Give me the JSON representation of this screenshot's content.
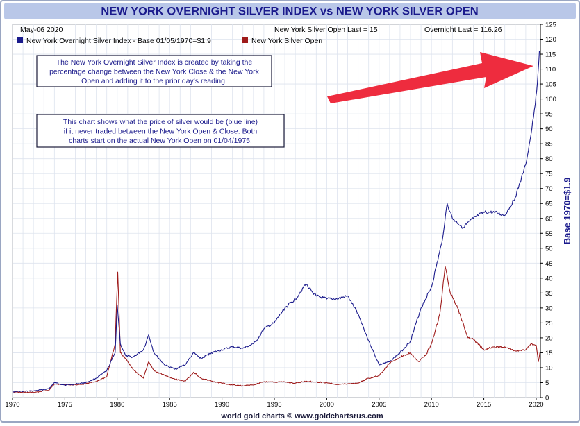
{
  "title": "NEW YORK OVERNIGHT SILVER INDEX vs NEW YORK SILVER OPEN",
  "date_label": "May-06  2020",
  "legend": [
    {
      "label": "New York Overnight Silver Index - Base 01/05/1970=$1.9",
      "color": "#1a1a8c"
    },
    {
      "label": "New York Silver Open",
      "color": "#9e1a1a"
    }
  ],
  "last_values": {
    "open_text": "New York Silver Open Last = 15",
    "overnight_text": "Overnight Last = 116.26"
  },
  "notes": [
    "The New York Overnight Silver Index is created by taking the percentage change between the New York Close & the New York Open and adding it to the prior day's reading.",
    "This chart shows what the price of silver would be (blue line) if it never traded between the New York Open & Close. Both charts start on the actual New York Open on 01/04/1975."
  ],
  "footer": "world gold charts © www.goldchartsrus.com",
  "colors": {
    "title_bg": "#b9c7e8",
    "title_text": "#1a1a8c",
    "blue_line": "#1a1a8c",
    "red_line": "#9e1a1a",
    "annotation_arrow": "#ee2c3e",
    "note_text": "#1a1a8c",
    "y2_label": "#1a1a8c"
  },
  "chart_data": {
    "type": "line",
    "title": "NEW YORK OVERNIGHT SILVER INDEX vs NEW YORK SILVER OPEN",
    "xlabel": "",
    "ylabel": "",
    "y2label": "Base 1970=$1.9",
    "xlim": [
      1970,
      2020.4
    ],
    "ylim": [
      0,
      125
    ],
    "x_ticks": [
      1970,
      1975,
      1980,
      1985,
      1990,
      1995,
      2000,
      2005,
      2010,
      2015,
      2020
    ],
    "y_ticks": [
      0,
      5,
      10,
      15,
      20,
      25,
      30,
      35,
      40,
      45,
      50,
      55,
      60,
      65,
      70,
      75,
      80,
      85,
      90,
      95,
      100,
      105,
      110,
      115,
      120,
      125
    ],
    "grid": true,
    "legend_position": "top-left",
    "annotations": [
      "red arrow pointing to the blue line peak near 2020"
    ],
    "series": [
      {
        "name": "New York Overnight Silver Index - Base 01/05/1970=$1.9",
        "x": [
          1970,
          1972,
          1973.5,
          1974,
          1975,
          1976,
          1977,
          1978,
          1979,
          1979.8,
          1980.0,
          1980.3,
          1980.8,
          1981.5,
          1982.5,
          1983.0,
          1983.5,
          1984.5,
          1985.5,
          1986.5,
          1987.3,
          1988,
          1989,
          1990,
          1991,
          1992,
          1993,
          1993.5,
          1994,
          1995,
          1996,
          1997,
          1998.0,
          1998.5,
          1999,
          2000,
          2001,
          2002,
          2003,
          2004,
          2005,
          2006,
          2007,
          2008,
          2009,
          2010,
          2011,
          2011.5,
          2012,
          2013,
          2014,
          2015,
          2016,
          2017,
          2018,
          2019,
          2019.5,
          2019.9,
          2020.1,
          2020.3
        ],
        "values": [
          2,
          2.2,
          3,
          5,
          4.2,
          4.5,
          5,
          6.5,
          9,
          15,
          31,
          18,
          14,
          13.5,
          16,
          21,
          15,
          11,
          9.5,
          11,
          15,
          13,
          15,
          16,
          17,
          16.5,
          18,
          20,
          23,
          25,
          30,
          33,
          38,
          36,
          34,
          33,
          33,
          34,
          28,
          19,
          11,
          12,
          15,
          19,
          30,
          37,
          52,
          65,
          60,
          57,
          60,
          62,
          62,
          61,
          67,
          78,
          88,
          98,
          105,
          116
        ]
      },
      {
        "name": "New York Silver Open",
        "x": [
          1970,
          1972,
          1973.5,
          1974,
          1975,
          1976,
          1977,
          1978,
          1979,
          1979.8,
          1980.05,
          1980.3,
          1980.8,
          1981.5,
          1982.5,
          1983.0,
          1983.5,
          1984.5,
          1985.5,
          1986.5,
          1987.3,
          1988,
          1989,
          1990,
          1991,
          1992,
          1993,
          1994,
          1995,
          1996,
          1997,
          1998,
          1999,
          2000,
          2001,
          2002,
          2003,
          2004,
          2005,
          2006,
          2007,
          2008,
          2008.8,
          2009.5,
          2010,
          2010.8,
          2011.3,
          2011.8,
          2012.5,
          2013.5,
          2014,
          2015,
          2016,
          2017,
          2018,
          2019,
          2019.6,
          2020.0,
          2020.2,
          2020.35
        ],
        "values": [
          1.8,
          1.7,
          2.5,
          4.5,
          4.3,
          4.3,
          4.6,
          5.4,
          7,
          18,
          42,
          15,
          13,
          9.5,
          6.5,
          12,
          9,
          7.5,
          6.2,
          5.5,
          8.5,
          6.5,
          5.5,
          4.8,
          4.2,
          3.9,
          4.2,
          5.3,
          5.2,
          5.2,
          4.8,
          5.5,
          5.2,
          5,
          4.4,
          4.6,
          4.9,
          6.5,
          7.3,
          11.5,
          13.5,
          15,
          12,
          14.5,
          18,
          28,
          44,
          35,
          30,
          20,
          19.5,
          16,
          17,
          17,
          15.5,
          16,
          18,
          17.5,
          12,
          15
        ]
      }
    ]
  }
}
